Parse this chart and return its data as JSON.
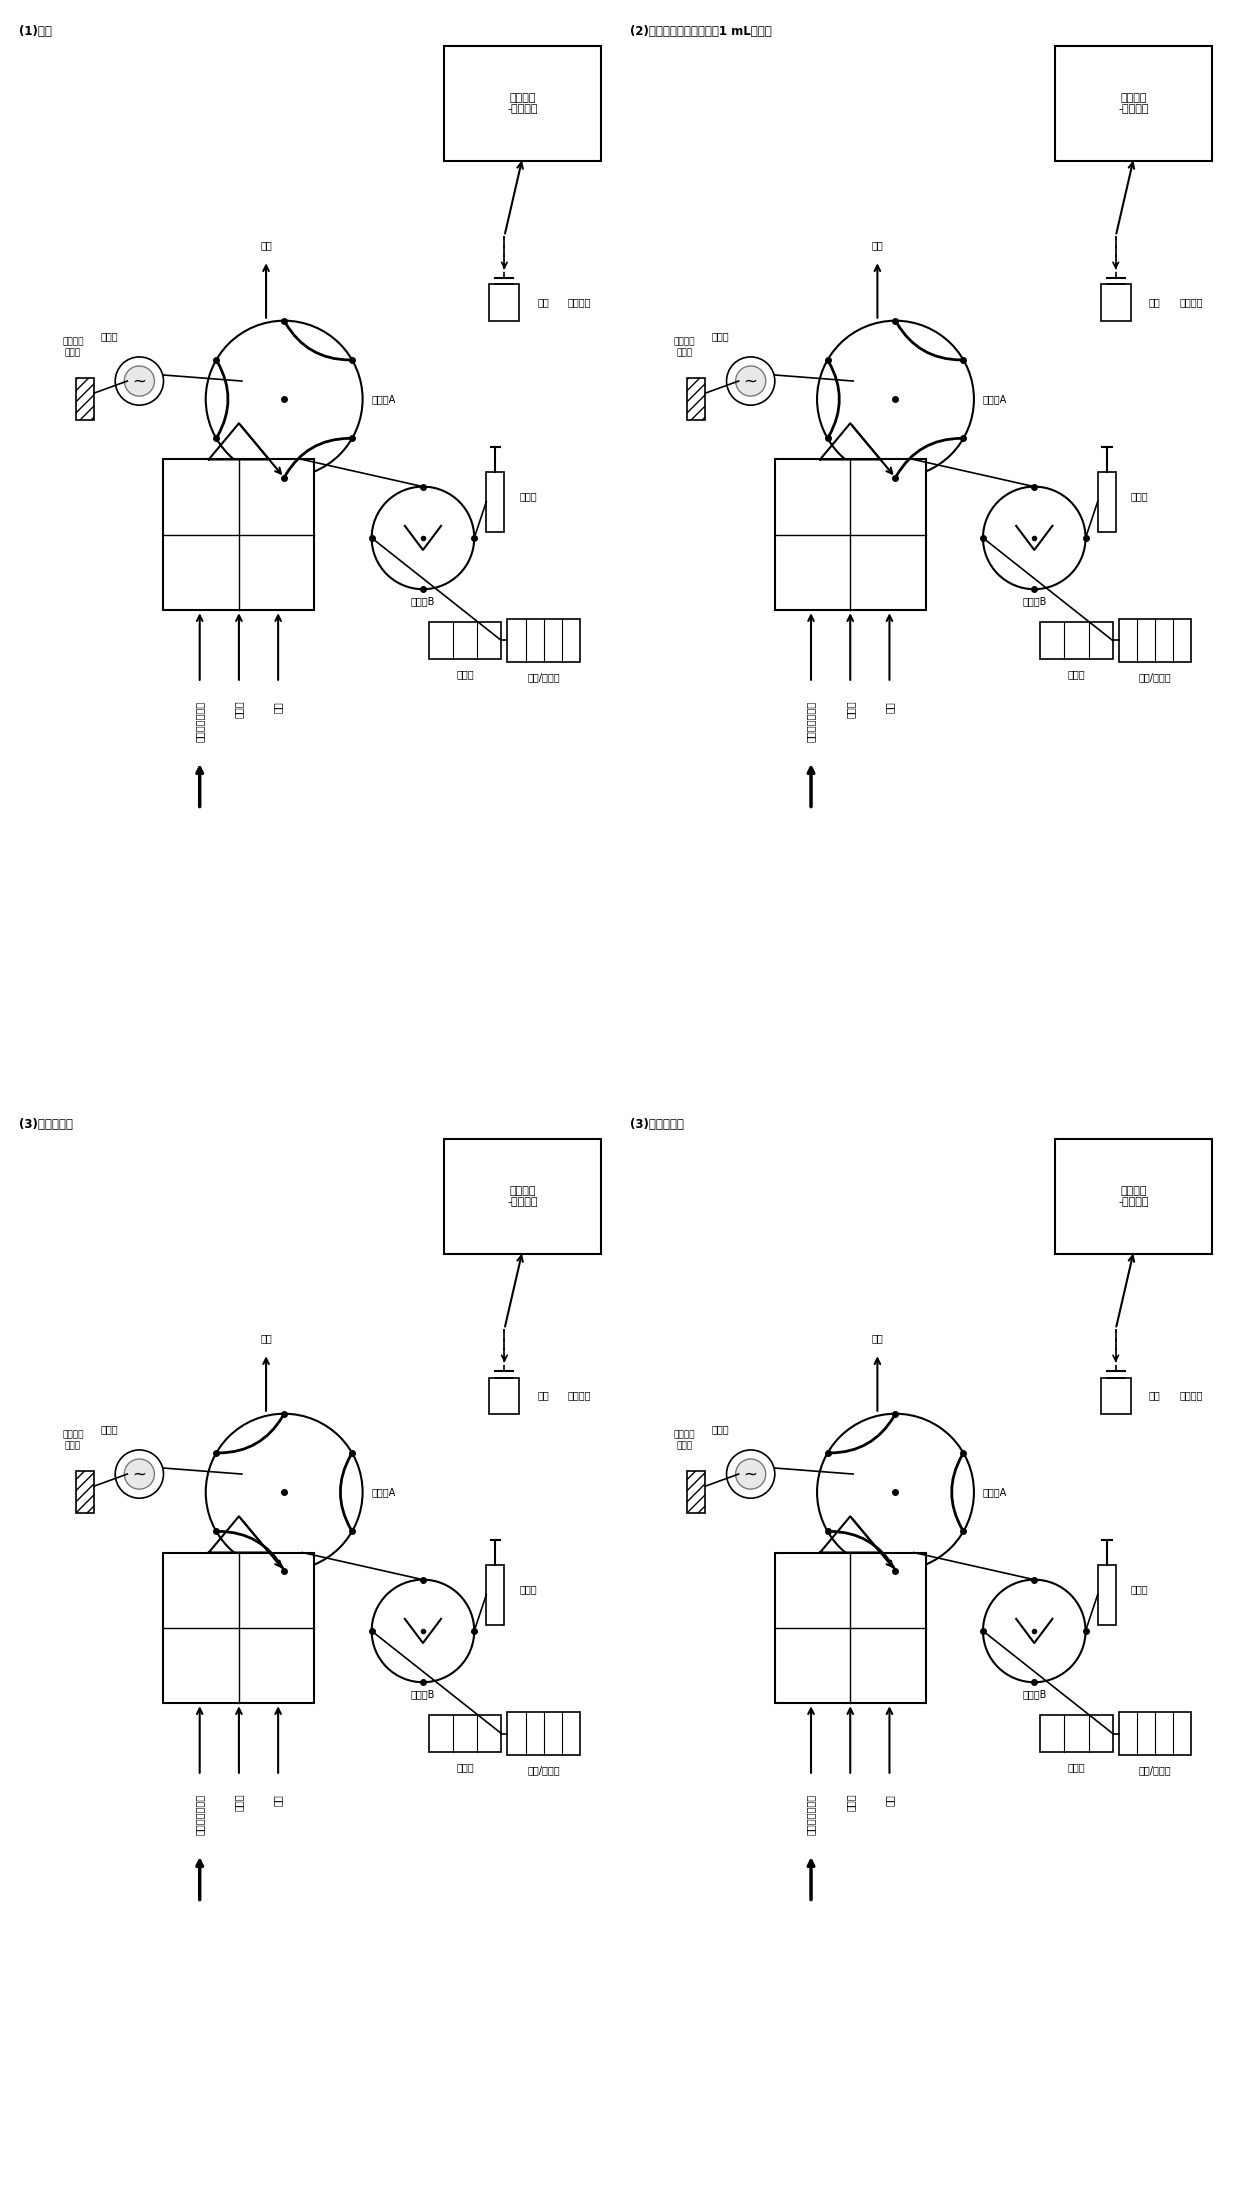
{
  "title": "",
  "background": "#ffffff",
  "panels": [
    {
      "label": "(1)富集",
      "step_label": null
    },
    {
      "label": "(3)洗脱，衍生",
      "step_label": null
    },
    {
      "label": "(2)脱水，洗脱衍生液充满1 mL进样环",
      "step_label": null
    },
    {
      "label": "(3)洗脱，衍生",
      "step_label": null
    }
  ],
  "gc_ms_label": "气相色谱\n-质谱检测",
  "react_label": "反应池",
  "column_label": "多壁碳纳米管柱",
  "waste_label": "废液",
  "deriv_label": "衍生",
  "conc_label": "浓缩定容",
  "valve_a_label": "进样阀A",
  "valve_b_label": "进样阀B",
  "loop_label": "进样环",
  "pump_label": "蠕动泵",
  "wash_label": "洗脱/衍生液",
  "sample_label": "预处理后的水样",
  "complex_label": "络合剂",
  "air_label": "空气"
}
